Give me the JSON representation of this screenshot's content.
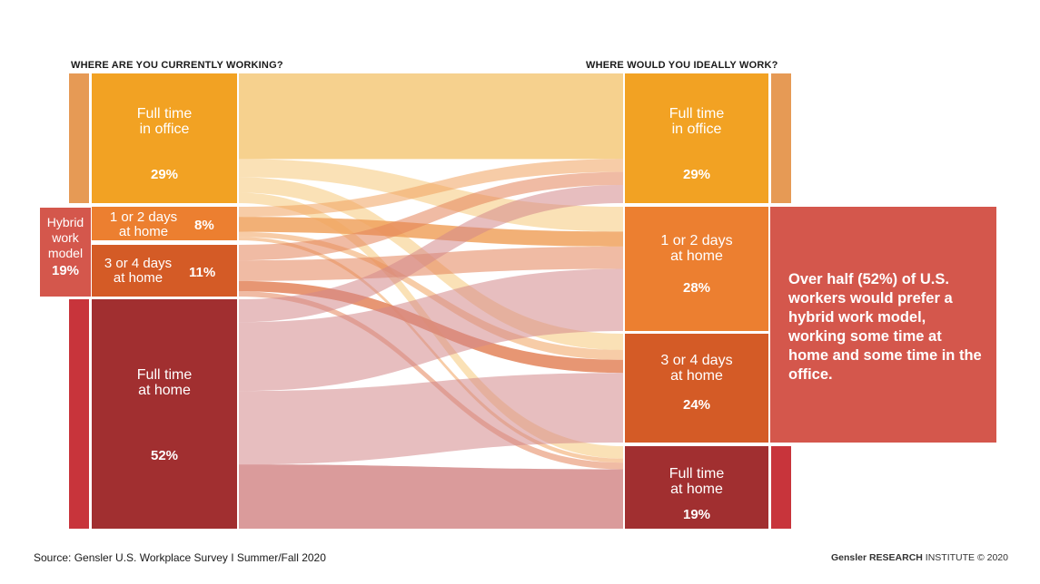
{
  "headings": {
    "left": "WHERE ARE YOU CURRENTLY WORKING?",
    "right": "WHERE WOULD YOU IDEALLY WORK?"
  },
  "left_nodes": [
    {
      "label": "Full time\nin office",
      "value": "29%",
      "color": "#f2a223"
    },
    {
      "label": "1 or 2 days\nat home",
      "value": "8%",
      "color": "#ec7f30"
    },
    {
      "label": "3 or 4 days\nat home",
      "value": "11%",
      "color": "#d45b26"
    },
    {
      "label": "Full time\nat home",
      "value": "52%",
      "color": "#a12f30"
    }
  ],
  "right_nodes": [
    {
      "label": "Full time\nin office",
      "value": "29%",
      "color": "#f2a223"
    },
    {
      "label": "1 or 2 days\nat home",
      "value": "28%",
      "color": "#ec7f30"
    },
    {
      "label": "3 or 4 days\nat home",
      "value": "24%",
      "color": "#d45b26"
    },
    {
      "label": "Full time\nat home",
      "value": "19%",
      "color": "#a12f30"
    }
  ],
  "hybrid_tag": {
    "label": "Hybrid\nwork\nmodel",
    "value": "19%"
  },
  "callout": "Over half (52%) of U.S. workers would prefer a hybrid work model, working some time at home and some time in the office.",
  "footer": {
    "source": "Source: Gensler U.S. Workplace Survey I Summer/Fall 2020",
    "brand_bold": "Gensler RESEARCH",
    "brand_rest": " INSTITUTE © 2020"
  },
  "colors": {
    "office": "#f2a223",
    "hybrid_light": "#ec7f30",
    "hybrid_heavy": "#d45b26",
    "home": "#a12f30",
    "hybrid_accent": "#d4574c",
    "side_bar_office": "#e69a55",
    "side_bar_home": "#c8343b"
  }
}
